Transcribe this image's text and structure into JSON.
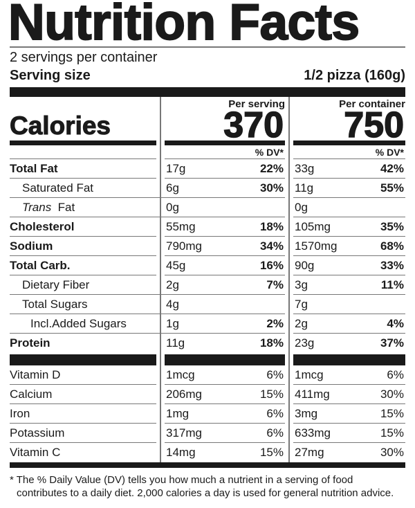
{
  "title": "Nutrition Facts",
  "servings_per_container": "2 servings per container",
  "serving_size": {
    "label": "Serving size",
    "value": "1/2 pizza (160g)"
  },
  "calories": {
    "label": "Calories",
    "per_serving_label": "Per serving",
    "per_serving": "370",
    "per_container_label": "Per container",
    "per_container": "750",
    "dv_label": "% DV*"
  },
  "nutrients": [
    {
      "name": "Total Fat",
      "bold": true,
      "indent": 0,
      "serving_amount": "17g",
      "serving_dv": "22%",
      "container_amount": "33g",
      "container_dv": "42%"
    },
    {
      "name": "Saturated Fat",
      "bold": false,
      "indent": 1,
      "serving_amount": "6g",
      "serving_dv": "30%",
      "container_amount": "11g",
      "container_dv": "55%"
    },
    {
      "name_italic": "Trans",
      "name": "Fat",
      "bold": false,
      "indent": 1,
      "serving_amount": "0g",
      "serving_dv": "",
      "container_amount": "0g",
      "container_dv": ""
    },
    {
      "name": "Cholesterol",
      "bold": true,
      "indent": 0,
      "serving_amount": "55mg",
      "serving_dv": "18%",
      "container_amount": "105mg",
      "container_dv": "35%"
    },
    {
      "name": "Sodium",
      "bold": true,
      "indent": 0,
      "serving_amount": "790mg",
      "serving_dv": "34%",
      "container_amount": "1570mg",
      "container_dv": "68%"
    },
    {
      "name": "Total Carb.",
      "bold": true,
      "indent": 0,
      "serving_amount": "45g",
      "serving_dv": "16%",
      "container_amount": "90g",
      "container_dv": "33%"
    },
    {
      "name": "Dietary Fiber",
      "bold": false,
      "indent": 1,
      "serving_amount": "2g",
      "serving_dv": "7%",
      "container_amount": "3g",
      "container_dv": "11%"
    },
    {
      "name": "Total Sugars",
      "bold": false,
      "indent": 1,
      "serving_amount": "4g",
      "serving_dv": "",
      "container_amount": "7g",
      "container_dv": ""
    },
    {
      "name": "Incl.Added Sugars",
      "bold": false,
      "indent": 2,
      "serving_amount": "1g",
      "serving_dv": "2%",
      "container_amount": "2g",
      "container_dv": "4%"
    },
    {
      "name": "Protein",
      "bold": true,
      "indent": 0,
      "serving_amount": "11g",
      "serving_dv": "18%",
      "container_amount": "23g",
      "container_dv": "37%"
    }
  ],
  "vitamins": [
    {
      "name": "Vitamin D",
      "serving_amount": "1mcg",
      "serving_dv": "6%",
      "container_amount": "1mcg",
      "container_dv": "6%"
    },
    {
      "name": "Calcium",
      "serving_amount": "206mg",
      "serving_dv": "15%",
      "container_amount": "411mg",
      "container_dv": "30%"
    },
    {
      "name": "Iron",
      "serving_amount": "1mg",
      "serving_dv": "6%",
      "container_amount": "3mg",
      "container_dv": "15%"
    },
    {
      "name": "Potassium",
      "serving_amount": "317mg",
      "serving_dv": "6%",
      "container_amount": "633mg",
      "container_dv": "15%"
    },
    {
      "name": "Vitamin C",
      "serving_amount": "14mg",
      "serving_dv": "15%",
      "container_amount": "27mg",
      "container_dv": "30%"
    }
  ],
  "footnote_line1": "* The % Daily Value (DV) tells you how much a nutrient in a serving of food",
  "footnote_line2": "contributes to a daily diet. 2,000 calories a day is used for general nutrition advice."
}
